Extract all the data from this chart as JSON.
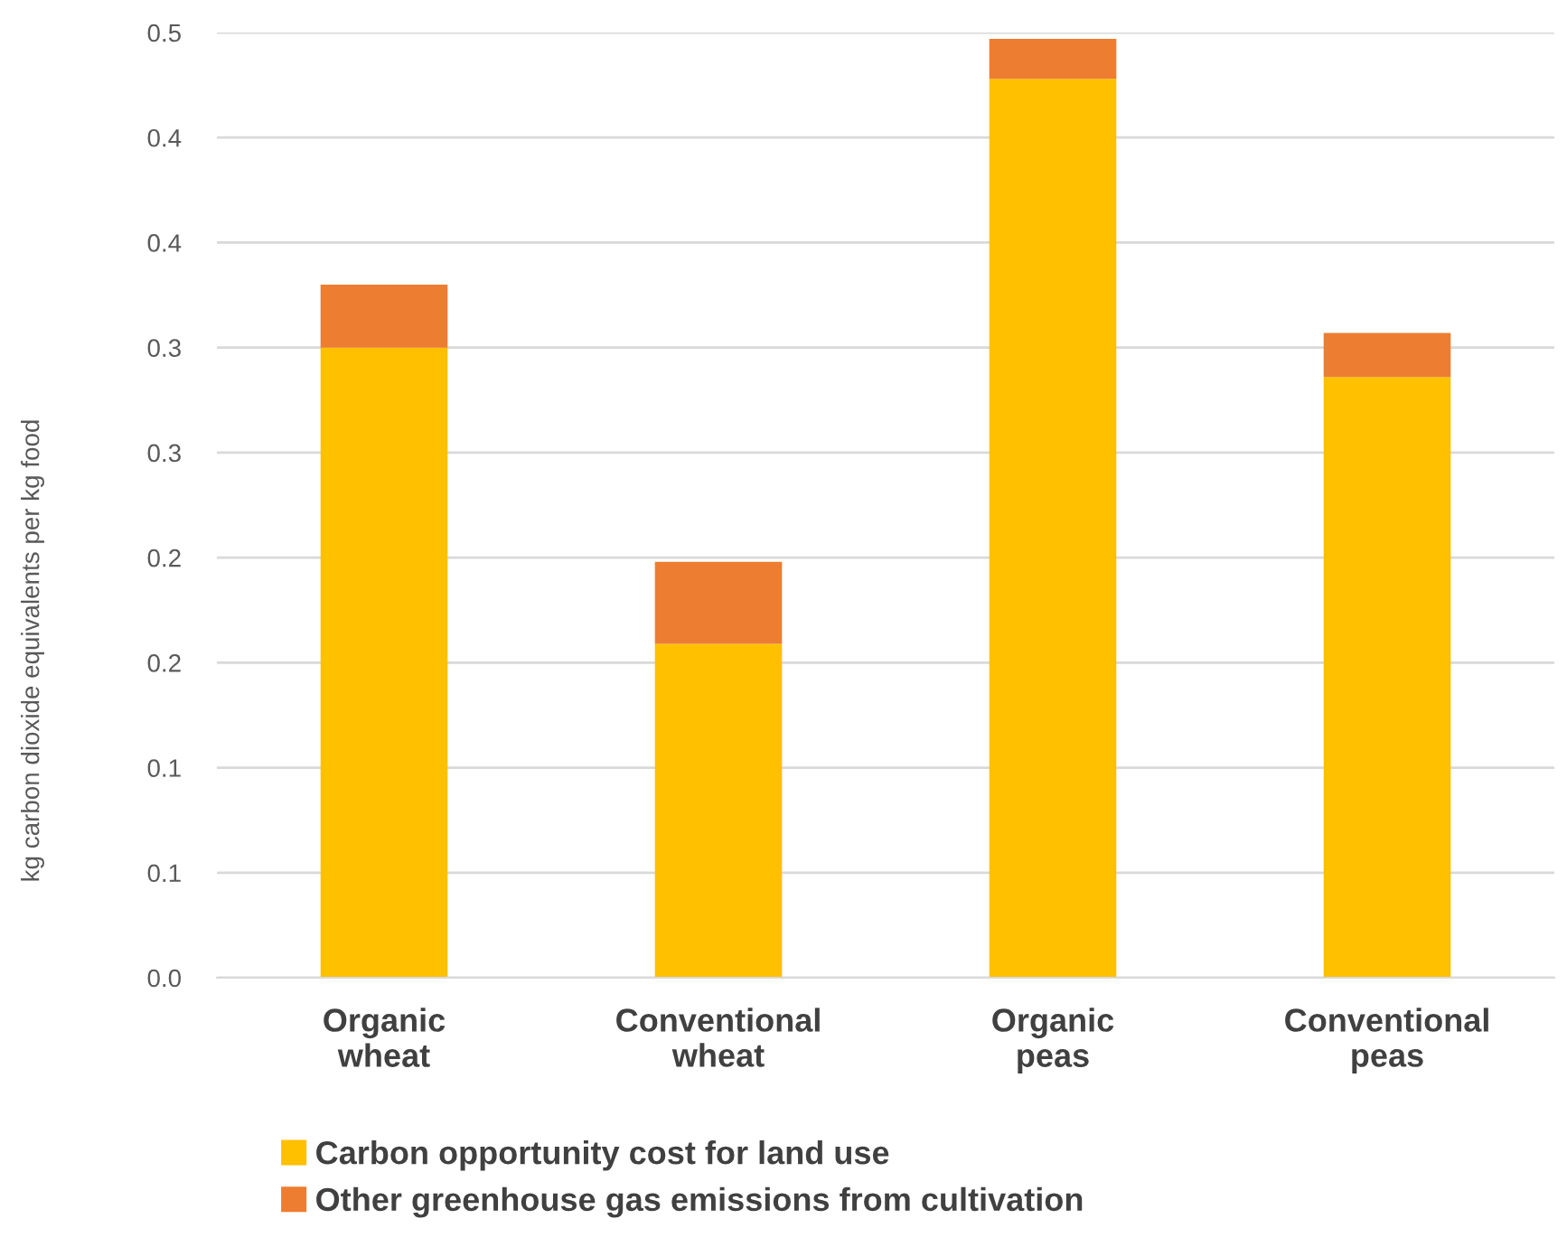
{
  "chart_data": {
    "type": "bar",
    "stacked": true,
    "ylabel": "kg carbon dioxide equivalents per kg food",
    "categories": [
      "Organic\nwheat",
      "Conventional\nwheat",
      "Organic\npeas",
      "Conventional\npeas"
    ],
    "series": [
      {
        "name": "Carbon opportunity cost for land use",
        "color": "#ffc000",
        "values": [
          0.3,
          0.159,
          0.428,
          0.286
        ]
      },
      {
        "name": "Other greenhouse gas emissions from cultivation",
        "color": "#ed7d31",
        "values": [
          0.03,
          0.039,
          0.019,
          0.021
        ]
      }
    ],
    "ylim": [
      0,
      0.45
    ],
    "yticks": [
      {
        "value": 0,
        "label": "0.0"
      },
      {
        "value": 0.05,
        "label": "0.1"
      },
      {
        "value": 0.1,
        "label": "0.1"
      },
      {
        "value": 0.15,
        "label": "0.2"
      },
      {
        "value": 0.2,
        "label": "0.2"
      },
      {
        "value": 0.25,
        "label": "0.3"
      },
      {
        "value": 0.3,
        "label": "0.3"
      },
      {
        "value": 0.35,
        "label": "0.4"
      },
      {
        "value": 0.4,
        "label": "0.4"
      },
      {
        "value": 0.45,
        "label": "0.5"
      }
    ],
    "grid": "y",
    "legend": "bottom left"
  }
}
